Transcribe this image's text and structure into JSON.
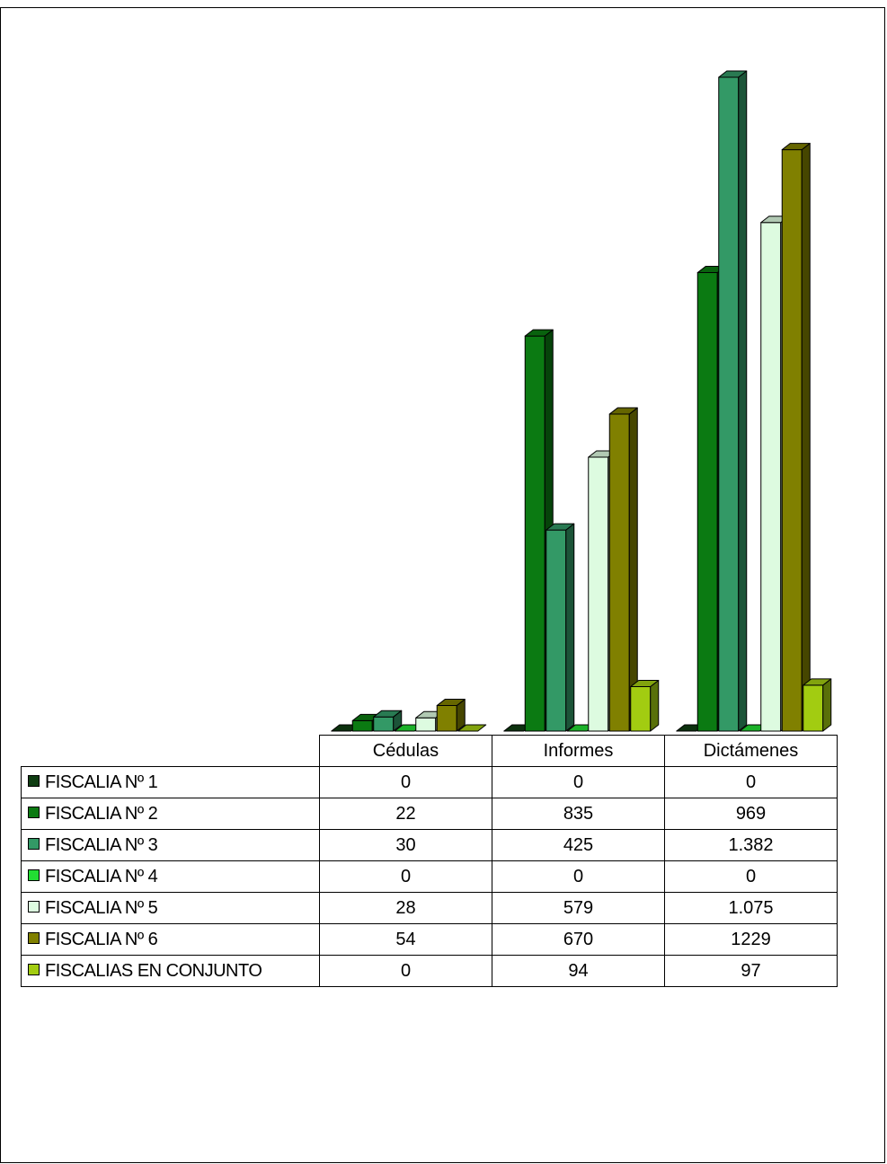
{
  "chart_data": {
    "type": "bar",
    "categories": [
      "Cédulas",
      "Informes",
      "Dictámenes"
    ],
    "series": [
      {
        "name": "FISCALIA Nº 1",
        "color": "#0f3d12",
        "values": [
          0,
          0,
          0
        ],
        "labels": [
          "0",
          "0",
          "0"
        ]
      },
      {
        "name": "FISCALIA Nº 2",
        "color": "#0b7a12",
        "values": [
          22,
          835,
          969
        ],
        "labels": [
          "22",
          "835",
          "969"
        ]
      },
      {
        "name": "FISCALIA Nº 3",
        "color": "#339966",
        "values": [
          30,
          425,
          1382
        ],
        "labels": [
          "30",
          "425",
          "1.382"
        ]
      },
      {
        "name": "FISCALIA Nº 4",
        "color": "#22dd33",
        "values": [
          0,
          0,
          0
        ],
        "labels": [
          "0",
          "0",
          "0"
        ]
      },
      {
        "name": "FISCALIA Nº 5",
        "color": "#ddfbe0",
        "values": [
          28,
          579,
          1075
        ],
        "labels": [
          "28",
          "579",
          "1.075"
        ]
      },
      {
        "name": "FISCALIA Nº 6",
        "color": "#808000",
        "values": [
          54,
          670,
          1229
        ],
        "labels": [
          "54",
          "670",
          "1229"
        ]
      },
      {
        "name": "FISCALIAS EN CONJUNTO",
        "color": "#a2cc11",
        "values": [
          0,
          94,
          97
        ],
        "labels": [
          "0",
          "94",
          "97"
        ]
      }
    ],
    "data_table": true,
    "three_d": true
  }
}
